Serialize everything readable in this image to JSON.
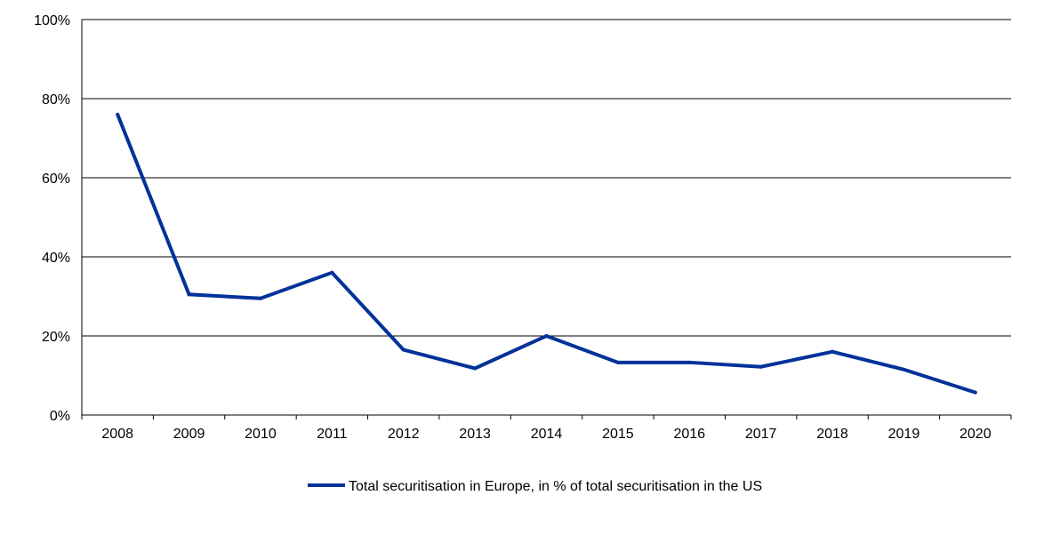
{
  "chart_data": {
    "type": "line",
    "title": "",
    "xlabel": "",
    "ylabel": "",
    "x": [
      "2008",
      "2009",
      "2010",
      "2011",
      "2012",
      "2013",
      "2014",
      "2015",
      "2016",
      "2017",
      "2018",
      "2019",
      "2020"
    ],
    "series": [
      {
        "name": "Total securitisation in Europe, in % of total securitisation in the US",
        "values": [
          76,
          30.5,
          29.5,
          36,
          16.5,
          11.8,
          20,
          13.3,
          13.3,
          12.2,
          16,
          11.5,
          5.7
        ],
        "color": "#003299"
      }
    ],
    "ylim": [
      0,
      100
    ],
    "yticks": [
      0,
      20,
      40,
      60,
      80,
      100
    ],
    "ytick_labels": [
      "0%",
      "20%",
      "40%",
      "60%",
      "80%",
      "100%"
    ],
    "grid": true,
    "legend_position": "bottom-center"
  }
}
